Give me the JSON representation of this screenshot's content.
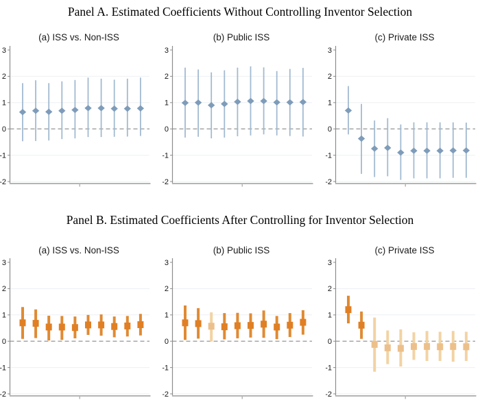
{
  "figure": {
    "panel_a_title": "Panel A. Estimated Coefficients Without Controlling Inventor Selection",
    "panel_b_title": "Panel B. Estimated Coefficients After Controlling for Inventor Selection"
  },
  "chart_data": {
    "type": "scatter",
    "description": "Coefficient estimates with vertical confidence-interval whiskers; 10 event-time estimates per subplot; dashed horizontal reference line at 0",
    "axes": {
      "ylim": [
        -2,
        3
      ],
      "yticks": [
        3,
        2,
        1,
        0,
        -1,
        -2
      ],
      "zero_line": "dashed",
      "grid": true,
      "x_points": 10,
      "x_tick_labels": []
    },
    "style": {
      "grid_color": "#eceff2",
      "zero_line_color": "#9d9d9d",
      "y_axis_color": "#8c8c8c",
      "x_axis_color": "#b4b4b4",
      "tick_label_color": "#141414"
    },
    "panels": [
      {
        "id": "panel-a",
        "title": "Panel A. Estimated Coefficients Without Controlling Inventor Selection",
        "marker": "diamond",
        "colors": {
          "significant": {
            "marker": "#7e9cba",
            "ci": "#a2bad1"
          }
        },
        "subplots": [
          {
            "label": "(a) ISS vs. Non-ISS",
            "estimates": [
              0.64,
              0.69,
              0.65,
              0.69,
              0.72,
              0.79,
              0.79,
              0.77,
              0.77,
              0.78
            ],
            "ci_low": [
              -0.47,
              -0.46,
              -0.44,
              -0.39,
              -0.36,
              -0.31,
              -0.31,
              -0.3,
              -0.29,
              -0.27
            ],
            "ci_high": [
              1.74,
              1.85,
              1.74,
              1.81,
              1.86,
              1.95,
              1.91,
              1.87,
              1.91,
              1.95
            ],
            "significant": [
              true,
              true,
              true,
              true,
              true,
              true,
              true,
              true,
              true,
              true
            ]
          },
          {
            "label": "(b) Public ISS",
            "estimates": [
              0.99,
              1.0,
              0.9,
              0.95,
              1.03,
              1.06,
              1.06,
              1.01,
              1.01,
              1.02
            ],
            "ci_low": [
              -0.33,
              -0.3,
              -0.36,
              -0.33,
              -0.28,
              -0.25,
              -0.21,
              -0.25,
              -0.27,
              -0.29
            ],
            "ci_high": [
              2.33,
              2.26,
              2.15,
              2.23,
              2.33,
              2.38,
              2.34,
              2.2,
              2.28,
              2.32
            ],
            "significant": [
              true,
              true,
              true,
              true,
              true,
              true,
              true,
              true,
              true,
              true
            ]
          },
          {
            "label": "(c) Private ISS",
            "estimates": [
              0.7,
              -0.37,
              -0.75,
              -0.72,
              -0.9,
              -0.83,
              -0.83,
              -0.83,
              -0.82,
              -0.82
            ],
            "ci_low": [
              -0.21,
              -1.71,
              -1.83,
              -1.8,
              -1.94,
              -1.88,
              -1.88,
              -1.88,
              -1.86,
              -1.86
            ],
            "ci_high": [
              1.63,
              0.95,
              0.32,
              0.41,
              0.17,
              0.25,
              0.25,
              0.25,
              0.25,
              0.24
            ],
            "significant": [
              true,
              true,
              true,
              true,
              true,
              true,
              true,
              true,
              true,
              true
            ]
          }
        ]
      },
      {
        "id": "panel-b",
        "title": "Panel B. Estimated Coefficients After Controlling for Inventor Selection",
        "marker": "square",
        "colors": {
          "significant": {
            "marker": "#e07f24",
            "ci": "#e08a33"
          },
          "insignificant": {
            "marker": "#ecc08b",
            "ci": "#f2d3a3"
          }
        },
        "subplots": [
          {
            "label": "(a) ISS vs. Non-ISS",
            "estimates": [
              0.7,
              0.68,
              0.54,
              0.54,
              0.52,
              0.62,
              0.62,
              0.56,
              0.58,
              0.63
            ],
            "ci_low": [
              0.09,
              0.12,
              0.03,
              0.05,
              0.11,
              0.24,
              0.21,
              0.15,
              0.18,
              0.22
            ],
            "ci_high": [
              1.3,
              1.21,
              0.97,
              0.96,
              0.94,
              1.0,
              1.02,
              0.94,
              0.96,
              1.04
            ],
            "significant": [
              true,
              true,
              true,
              true,
              true,
              true,
              true,
              true,
              true,
              true
            ]
          },
          {
            "label": "(b) Public ISS",
            "estimates": [
              0.7,
              0.67,
              0.57,
              0.55,
              0.59,
              0.6,
              0.65,
              0.54,
              0.61,
              0.72
            ],
            "ci_low": [
              0.05,
              0.1,
              -0.01,
              0.07,
              0.11,
              0.14,
              0.13,
              0.08,
              0.16,
              0.25
            ],
            "ci_high": [
              1.36,
              1.26,
              1.1,
              1.07,
              1.08,
              1.06,
              1.17,
              0.96,
              1.07,
              1.18
            ],
            "significant": [
              true,
              true,
              false,
              true,
              true,
              true,
              true,
              true,
              true,
              true
            ]
          },
          {
            "label": "(c) Private ISS",
            "estimates": [
              1.2,
              0.61,
              -0.12,
              -0.25,
              -0.27,
              -0.2,
              -0.2,
              -0.21,
              -0.2,
              -0.21
            ],
            "ci_low": [
              0.68,
              0.09,
              -1.16,
              -0.87,
              -0.96,
              -0.71,
              -0.75,
              -0.75,
              -0.78,
              -0.75
            ],
            "ci_high": [
              1.73,
              1.13,
              0.9,
              0.41,
              0.45,
              0.34,
              0.39,
              0.36,
              0.39,
              0.36
            ],
            "significant": [
              true,
              true,
              false,
              false,
              false,
              false,
              false,
              false,
              false,
              false
            ]
          }
        ]
      }
    ]
  }
}
